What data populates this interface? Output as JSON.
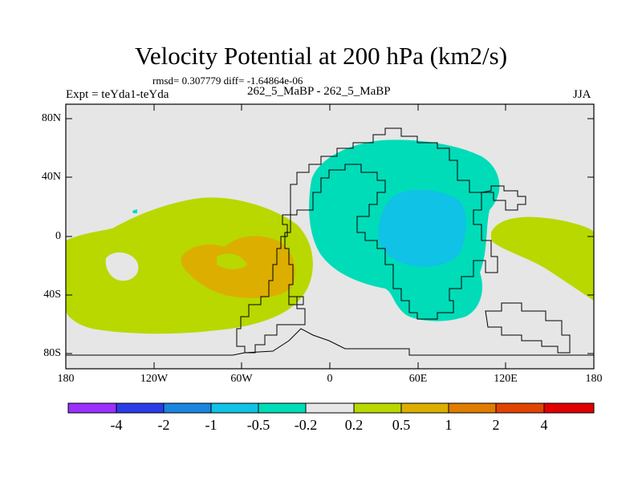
{
  "title": "Velocity Potential at 200 hPa (km2/s)",
  "rmsd_text": "rmsd= 0.307779 diff= -1.64864e-06",
  "expt_text": "Expt = teYda1-teYda",
  "cases_text": "262_5_MaBP - 262_5_MaBP",
  "season": "JJA",
  "map": {
    "lon_range": [
      -180,
      180
    ],
    "lat_range": [
      -90,
      90
    ],
    "y_ticks": [
      "80N",
      "40N",
      "0",
      "40S",
      "80S"
    ],
    "x_ticks": [
      "180",
      "120W",
      "60W",
      "0",
      "60E",
      "120E",
      "180"
    ],
    "background_color": "#e6e6e6"
  },
  "colorbar": {
    "colors": [
      "#9b30ff",
      "#2a3ce8",
      "#1a86e0",
      "#10c2e6",
      "#00dcb8",
      "#e6e6e6",
      "#b8d800",
      "#dcae00",
      "#e07c00",
      "#e04400",
      "#e00000"
    ],
    "labels": [
      "-4",
      "-2",
      "-1",
      "-0.5",
      "-0.2",
      "0.2",
      "0.5",
      "1",
      "2",
      "4"
    ]
  },
  "regions": [
    {
      "name": "positive-west",
      "level": "0.2 to 0.5",
      "color": "#b8d800"
    },
    {
      "name": "positive-west-core",
      "level": "0.5 to 1",
      "color": "#dcae00"
    },
    {
      "name": "negative-east",
      "level": "-0.5 to -0.2",
      "color": "#00dcb8"
    },
    {
      "name": "negative-east-core",
      "level": "-1 to -0.5",
      "color": "#10c2e6"
    },
    {
      "name": "positive-far-east",
      "level": "0.2 to 0.5",
      "color": "#b8d800"
    }
  ]
}
